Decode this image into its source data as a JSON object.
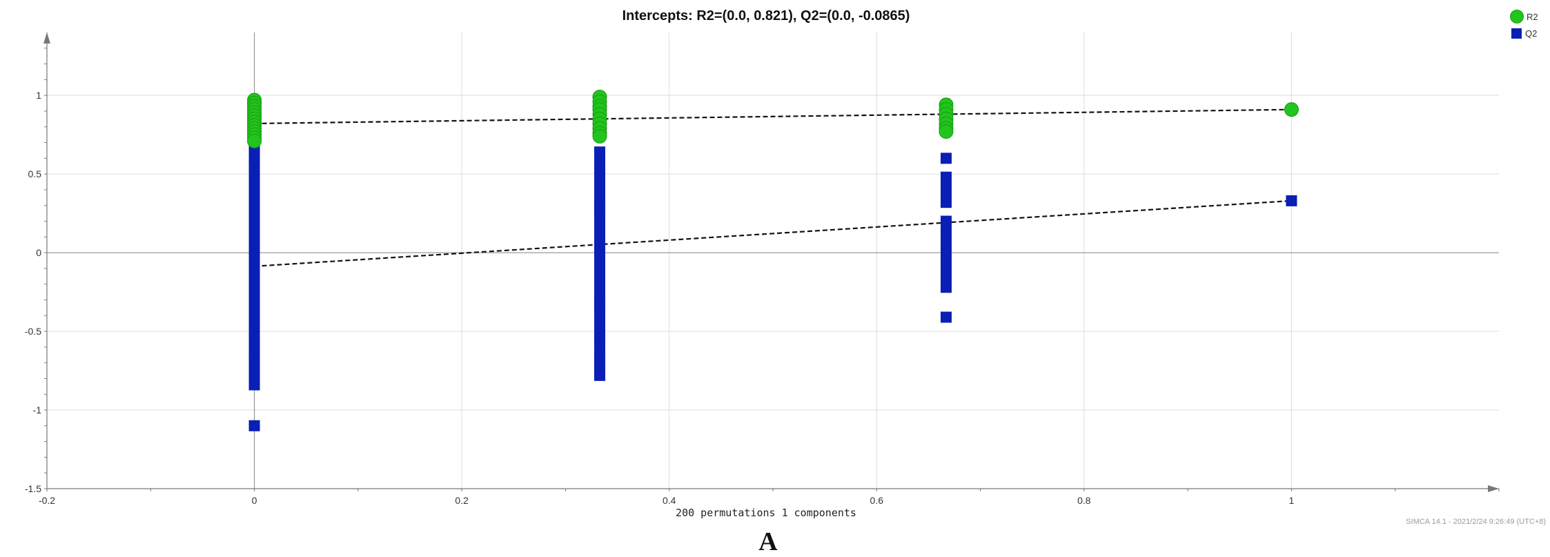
{
  "figure": {
    "title": "Intercepts: R2=(0.0, 0.821), Q2=(0.0, -0.0865)",
    "xlabel": "200 permutations 1 components",
    "watermark": "SIMCA 14.1 - 2021/2/24 9:26:49 (UTC+8)",
    "caption": "A"
  },
  "legend": {
    "r2_label": "R2",
    "q2_label": "Q2"
  },
  "colors": {
    "r2": "#22c51c",
    "r2_edge": "#189a12",
    "q2": "#0a1fb5",
    "grid": "#dcdcdc",
    "axis": "#777777"
  },
  "chart_data": {
    "type": "scatter",
    "title": "Intercepts: R2=(0.0, 0.821), Q2=(0.0, -0.0865)",
    "xlabel": "200 permutations 1 components",
    "ylabel": "",
    "xlim": [
      -0.2,
      1.2
    ],
    "ylim": [
      -1.5,
      1.4
    ],
    "x_ticks": [
      -0.2,
      0,
      0.2,
      0.4,
      0.6,
      0.8,
      1
    ],
    "y_ticks": [
      -1.5,
      -1,
      -0.5,
      0,
      0.5,
      1
    ],
    "grid": true,
    "legend_position": "top-right",
    "series": [
      {
        "name": "R2",
        "marker": "circle",
        "points": [
          [
            0,
            0.97
          ],
          [
            0,
            0.95
          ],
          [
            0,
            0.93
          ],
          [
            0,
            0.91
          ],
          [
            0,
            0.89
          ],
          [
            0,
            0.87
          ],
          [
            0,
            0.85
          ],
          [
            0,
            0.83
          ],
          [
            0,
            0.81
          ],
          [
            0,
            0.79
          ],
          [
            0,
            0.77
          ],
          [
            0,
            0.75
          ],
          [
            0,
            0.73
          ],
          [
            0,
            0.71
          ],
          [
            0.333,
            0.99
          ],
          [
            0.333,
            0.96
          ],
          [
            0.333,
            0.93
          ],
          [
            0.333,
            0.91
          ],
          [
            0.333,
            0.88
          ],
          [
            0.333,
            0.85
          ],
          [
            0.333,
            0.82
          ],
          [
            0.333,
            0.79
          ],
          [
            0.333,
            0.76
          ],
          [
            0.333,
            0.74
          ],
          [
            0.667,
            0.94
          ],
          [
            0.667,
            0.91
          ],
          [
            0.667,
            0.88
          ],
          [
            0.667,
            0.85
          ],
          [
            0.667,
            0.82
          ],
          [
            0.667,
            0.79
          ],
          [
            0.667,
            0.77
          ],
          [
            1,
            0.91
          ]
        ]
      },
      {
        "name": "Q2",
        "marker": "square",
        "segments": [
          [
            0,
            0.75,
            0.81
          ],
          [
            0,
            0.61,
            0.69
          ],
          [
            0,
            -0.64,
            0.56
          ],
          [
            0,
            -0.84,
            -0.7
          ],
          [
            0,
            -1.1,
            -1.1
          ],
          [
            0.333,
            0.78,
            0.81
          ],
          [
            0.333,
            0.3,
            0.64
          ],
          [
            0.333,
            -0.3,
            0.27
          ],
          [
            0.333,
            -0.51,
            -0.33
          ],
          [
            0.333,
            -0.63,
            -0.57
          ],
          [
            0.333,
            -0.71,
            -0.67
          ],
          [
            0.333,
            -0.78,
            -0.75
          ],
          [
            0.667,
            0.6,
            0.6
          ],
          [
            0.667,
            0.32,
            0.48
          ],
          [
            0.667,
            0.13,
            0.2
          ],
          [
            0.667,
            -0.03,
            0.08
          ],
          [
            0.667,
            -0.22,
            -0.08
          ],
          [
            0.667,
            -0.41,
            -0.41
          ],
          [
            1,
            0.33,
            0.33
          ]
        ]
      }
    ],
    "regression_lines": [
      {
        "series": "R2",
        "x": [
          0,
          1
        ],
        "y": [
          0.821,
          0.91
        ]
      },
      {
        "series": "Q2",
        "x": [
          0,
          1
        ],
        "y": [
          -0.0865,
          0.33
        ]
      }
    ]
  }
}
